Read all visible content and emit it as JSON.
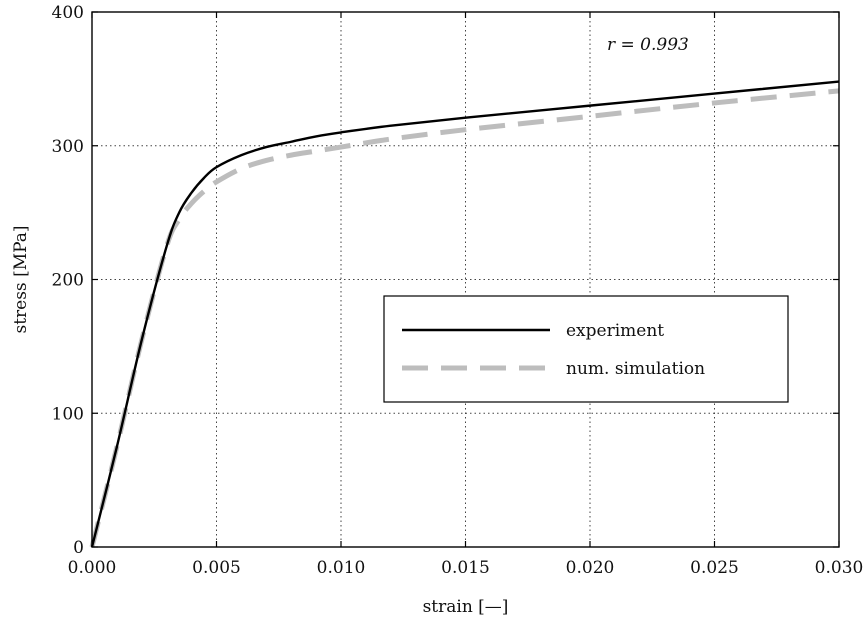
{
  "chart_data": {
    "type": "line",
    "title": "",
    "xlabel": "strain [—]",
    "ylabel": "stress [MPa]",
    "xlim": [
      0,
      0.03
    ],
    "ylim": [
      0,
      400
    ],
    "xticks": [
      0,
      0.005,
      0.01,
      0.015,
      0.02,
      0.025,
      0.03
    ],
    "xtick_labels": [
      "0.000",
      "0.005",
      "0.010",
      "0.015",
      "0.020",
      "0.025",
      "0.030"
    ],
    "yticks": [
      0,
      100,
      200,
      300,
      400
    ],
    "ytick_labels": [
      "0",
      "100",
      "200",
      "300",
      "400"
    ],
    "grid": true,
    "legend_position": "center-right",
    "annotation": "r = 0.993",
    "series": [
      {
        "name": "experiment",
        "color": "#000000",
        "style": "solid",
        "x": [
          0,
          0.001,
          0.002,
          0.003,
          0.0035,
          0.004,
          0.0045,
          0.005,
          0.006,
          0.007,
          0.008,
          0.009,
          0.01,
          0.012,
          0.015,
          0.02,
          0.025,
          0.03
        ],
        "y": [
          0,
          75,
          155,
          225,
          250,
          265,
          276,
          284,
          293,
          299,
          303,
          307,
          310,
          315,
          321,
          330,
          339,
          348
        ]
      },
      {
        "name": "num. simulation",
        "color": "#bdbdbd",
        "style": "dashed",
        "x": [
          0,
          0.001,
          0.002,
          0.003,
          0.0035,
          0.004,
          0.0045,
          0.005,
          0.006,
          0.007,
          0.008,
          0.009,
          0.01,
          0.012,
          0.015,
          0.02,
          0.025,
          0.03
        ],
        "y": [
          0,
          75,
          155,
          225,
          245,
          257,
          266,
          273,
          283,
          289,
          293,
          296,
          299,
          305,
          312,
          322,
          332,
          341
        ]
      }
    ]
  }
}
